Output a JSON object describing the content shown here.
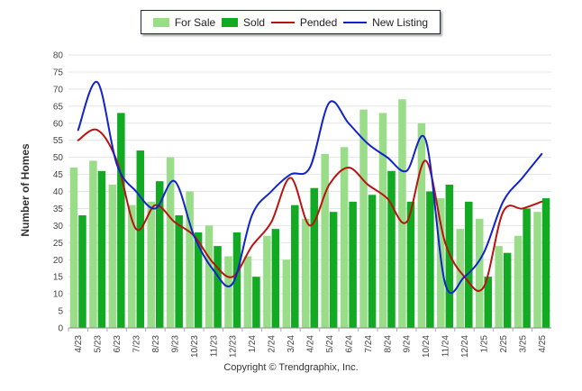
{
  "chart_data": {
    "type": "bar",
    "title": "",
    "xlabel": "",
    "ylabel": "Number of Homes",
    "ylim": [
      0,
      80
    ],
    "yticks": [
      0,
      5,
      10,
      15,
      20,
      25,
      30,
      35,
      40,
      45,
      50,
      55,
      60,
      65,
      70,
      75,
      80
    ],
    "grid": true,
    "legend_position": "top-center",
    "categories": [
      "4/23",
      "5/23",
      "6/23",
      "7/23",
      "8/23",
      "9/23",
      "10/23",
      "11/23",
      "12/23",
      "1/24",
      "2/24",
      "3/24",
      "4/24",
      "5/24",
      "6/24",
      "7/24",
      "8/24",
      "9/24",
      "10/24",
      "11/24",
      "12/24",
      "1/25",
      "2/25",
      "3/25",
      "4/25"
    ],
    "series": [
      {
        "name": "For Sale",
        "kind": "bar",
        "color": "#99dd88",
        "values": [
          47,
          49,
          42,
          36,
          37,
          50,
          40,
          30,
          21,
          21,
          27,
          20,
          32,
          51,
          53,
          64,
          63,
          67,
          60,
          38,
          29,
          32,
          24,
          27,
          34
        ]
      },
      {
        "name": "Sold",
        "kind": "bar",
        "color": "#11aa22",
        "values": [
          33,
          46,
          63,
          52,
          43,
          33,
          28,
          24,
          28,
          15,
          29,
          36,
          41,
          34,
          37,
          39,
          46,
          37,
          40,
          42,
          37,
          15,
          22,
          35,
          38
        ]
      },
      {
        "name": "Pended",
        "kind": "line",
        "color": "#bb1111",
        "values": [
          55,
          58,
          49,
          29,
          36,
          31,
          27,
          19,
          15,
          24,
          31,
          44,
          30,
          42,
          47,
          42,
          38,
          31,
          49,
          25,
          15,
          12,
          34,
          35,
          37
        ]
      },
      {
        "name": "New Listing",
        "kind": "line",
        "color": "#1122cc",
        "values": [
          58,
          72,
          48,
          40,
          35,
          43,
          27,
          17,
          13,
          33,
          40,
          45,
          47,
          66,
          60,
          54,
          50,
          46,
          55,
          13,
          15,
          22,
          37,
          44,
          51
        ]
      }
    ]
  },
  "copyright": "Copyright © Trendgraphix, Inc."
}
